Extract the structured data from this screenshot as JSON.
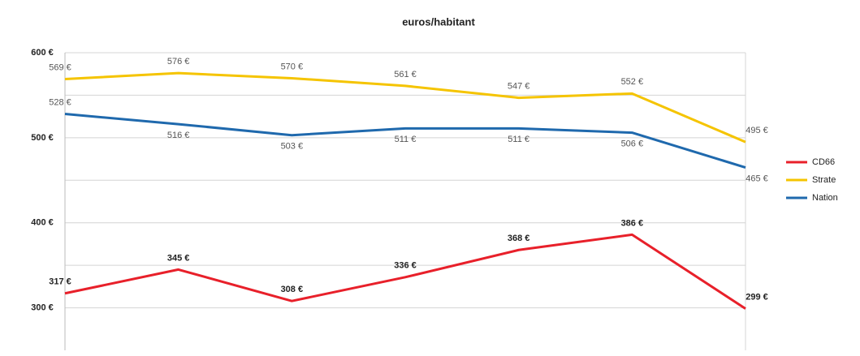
{
  "chart_data": {
    "type": "line",
    "title": "euros/habitant",
    "ylim": [
      250,
      600
    ],
    "yticks": [
      {
        "value": 300,
        "label": "300 €"
      },
      {
        "value": 400,
        "label": "400 €"
      },
      {
        "value": 500,
        "label": "500 €"
      },
      {
        "value": 600,
        "label": "600 €"
      }
    ],
    "yminor": [
      350,
      450,
      550
    ],
    "grid": true,
    "legend": "right",
    "series": [
      {
        "name": "CD66",
        "color": "#e8202a",
        "values": [
          317,
          345,
          308,
          336,
          368,
          386,
          299
        ],
        "value_labels": [
          "317 €",
          "345 €",
          "308 €",
          "336 €",
          "368 €",
          "386 €",
          "299 €"
        ]
      },
      {
        "name": "Strate",
        "color": "#f5c400",
        "values": [
          569,
          576,
          570,
          561,
          547,
          552,
          495
        ],
        "value_labels": [
          "569 €",
          "576 €",
          "570 €",
          "561 €",
          "547 €",
          "552 €",
          "495 €"
        ]
      },
      {
        "name": "Nation",
        "color": "#1f69ad",
        "values": [
          528,
          516,
          503,
          511,
          511,
          506,
          465
        ],
        "value_labels": [
          "528 €",
          "516 €",
          "503 €",
          "511 €",
          "511 €",
          "506 €",
          "465 €"
        ]
      }
    ]
  }
}
